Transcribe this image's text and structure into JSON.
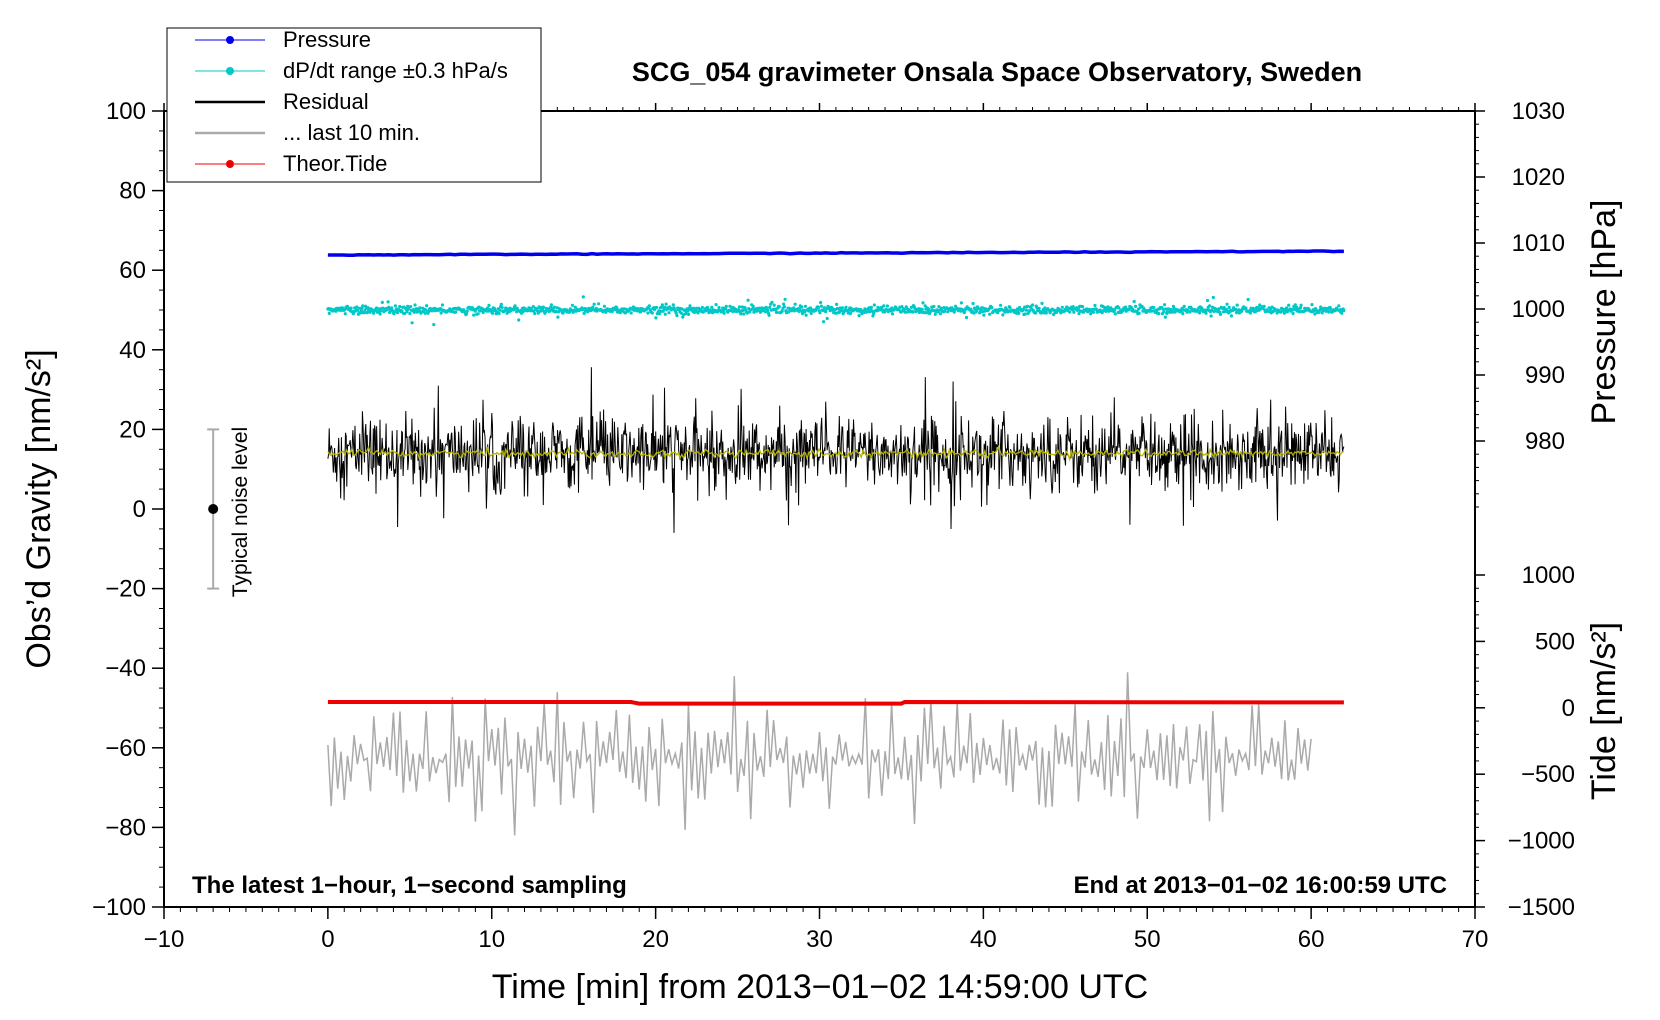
{
  "chart_data": {
    "type": "line",
    "title": "SCG_054 gravimeter Onsala Space Observatory, Sweden",
    "xlabel": "Time [min] from 2013−01−02 14:59:00 UTC",
    "ylabel_left": "Obs’d Gravity [nm/s²]",
    "ylabel_right_pressure": "Pressure [hPa]",
    "ylabel_right_tide": "Tide [nm/s²]",
    "xlim": [
      -10,
      70
    ],
    "ylim": [
      -100,
      100
    ],
    "x_ticks": [
      "−10",
      "0",
      "10",
      "20",
      "30",
      "40",
      "50",
      "60",
      "70"
    ],
    "x_tick_values": [
      -10,
      0,
      10,
      20,
      30,
      40,
      50,
      60,
      70
    ],
    "y_ticks": [
      "100",
      "80",
      "60",
      "40",
      "20",
      "0",
      "−20",
      "−40",
      "−60",
      "−80",
      "−100"
    ],
    "y_tick_values": [
      100,
      80,
      60,
      40,
      20,
      0,
      -20,
      -40,
      -60,
      -80,
      -100
    ],
    "pressure_ticks": [
      "1030",
      "1020",
      "1010",
      "1000",
      "990",
      "980"
    ],
    "pressure_tick_values": [
      1030,
      1020,
      1010,
      1000,
      990,
      980
    ],
    "pressure_range": [
      970,
      1030
    ],
    "tide_ticks": [
      "1000",
      "500",
      "0",
      "−500",
      "−1000",
      "−1500"
    ],
    "tide_tick_values": [
      1000,
      500,
      0,
      -500,
      -1000,
      -1500
    ],
    "tide_range": [
      -1500,
      1000
    ],
    "legend": [
      {
        "label": "Pressure",
        "color": "#0000ee",
        "marker": "dot"
      },
      {
        "label": "dP/dt range ±0.3 hPa/s",
        "color": "#00c8c8",
        "marker": "dot"
      },
      {
        "label": "Residual",
        "color": "#000000",
        "marker": "none"
      },
      {
        "label": "... last 10 min.",
        "color": "#aaaaaa",
        "marker": "none"
      },
      {
        "label": "Theor.Tide",
        "color": "#ee0000",
        "marker": "dot"
      }
    ],
    "series": [
      {
        "name": "Pressure",
        "color": "#0000ee",
        "x_range": [
          0,
          62
        ],
        "start_value": 63.8,
        "end_value": 64.8,
        "noise_amplitude": 0.15
      },
      {
        "name": "dP/dt",
        "color": "#00c8c8",
        "x_range": [
          0,
          62
        ],
        "center": 50,
        "noise_amplitude": 1.5,
        "outlier_min": 42,
        "outlier_max": 54
      },
      {
        "name": "Residual",
        "color": "#000000",
        "x_range": [
          0,
          62
        ],
        "center": 14,
        "noise_amplitude": 6,
        "min": -7,
        "max": 36
      },
      {
        "name": "Residual smoothed",
        "color": "#b4b400",
        "x_range": [
          0,
          62
        ],
        "center": 14,
        "noise_amplitude": 0.8
      },
      {
        "name": "... last 10 min.",
        "color": "#aaaaaa",
        "x_range": [
          0,
          60
        ],
        "center": -63,
        "noise_amplitude": 7,
        "min": -82,
        "max": -40
      },
      {
        "name": "Theor.Tide",
        "color": "#ee0000",
        "x_range": [
          0,
          62
        ],
        "start_value": -48.5,
        "end_value": -48.6,
        "mid_dip": -48.9
      }
    ],
    "noise_bar": {
      "x": -7,
      "center": 0,
      "low": -20,
      "high": 20,
      "label": "Typical noise level"
    },
    "annotations": {
      "left": "The latest 1−hour, 1−second sampling",
      "right": "End at 2013−01−02 16:00:59 UTC"
    }
  }
}
